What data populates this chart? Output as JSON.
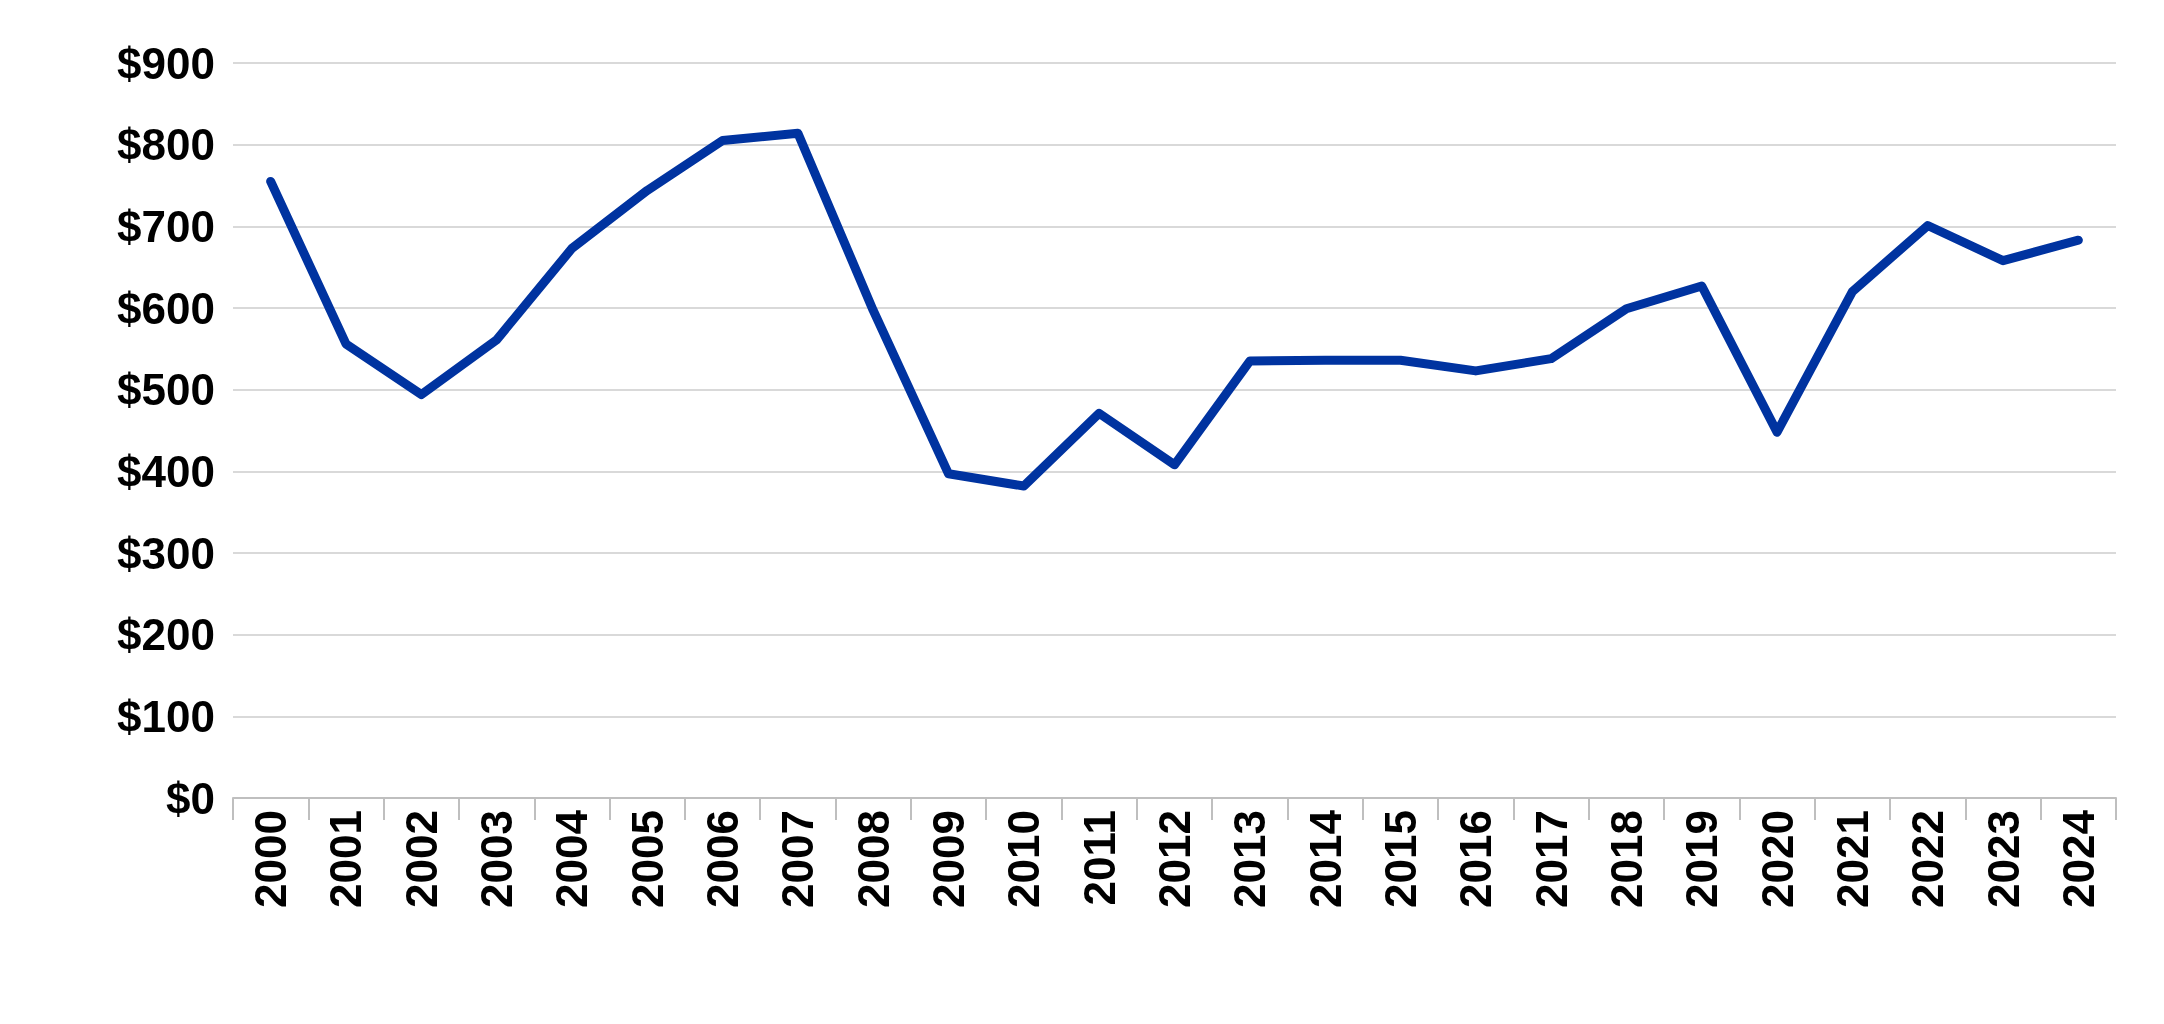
{
  "chart_data": {
    "type": "line",
    "categories": [
      "2000",
      "2001",
      "2002",
      "2003",
      "2004",
      "2005",
      "2006",
      "2007",
      "2008",
      "2009",
      "2010",
      "2011",
      "2012",
      "2013",
      "2014",
      "2015",
      "2016",
      "2017",
      "2018",
      "2019",
      "2020",
      "2021",
      "2022",
      "2023",
      "2024"
    ],
    "series": [
      {
        "color": "#0033a0",
        "values": [
          755,
          556,
          494,
          561,
          673,
          744,
          805,
          814,
          597,
          397,
          382,
          471,
          408,
          535,
          536,
          536,
          523,
          538,
          599,
          627,
          448,
          620,
          701,
          658,
          683
        ]
      }
    ],
    "ylim": [
      0,
      900
    ],
    "yticks": [
      {
        "value": 0,
        "label": "$0"
      },
      {
        "value": 100,
        "label": "$100"
      },
      {
        "value": 200,
        "label": "$200"
      },
      {
        "value": 300,
        "label": "$300"
      },
      {
        "value": 400,
        "label": "$400"
      },
      {
        "value": 500,
        "label": "$500"
      },
      {
        "value": 600,
        "label": "$600"
      },
      {
        "value": 700,
        "label": "$700"
      },
      {
        "value": 800,
        "label": "$800"
      },
      {
        "value": 900,
        "label": "$900"
      }
    ],
    "grid": "y",
    "marker": "none",
    "line_style": "solid"
  }
}
